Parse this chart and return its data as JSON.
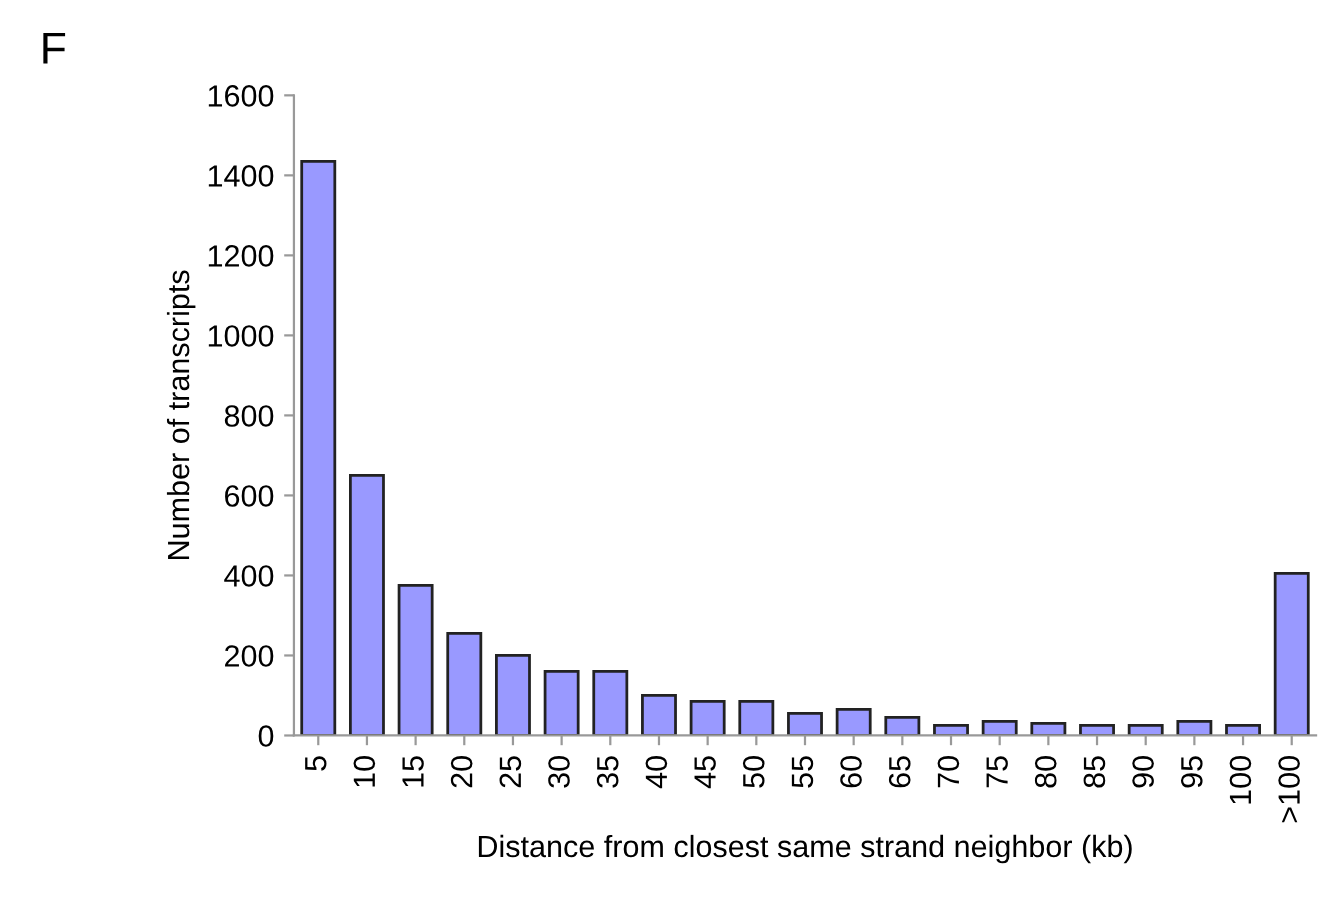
{
  "chart_data": {
    "type": "bar",
    "title": "F",
    "xlabel": "Distance from closest same strand neighbor (kb)",
    "ylabel": "Number of transcripts",
    "categories": [
      "5",
      "10",
      "15",
      "20",
      "25",
      "30",
      "35",
      "40",
      "45",
      "50",
      "55",
      "60",
      "65",
      "70",
      "75",
      "80",
      "85",
      "90",
      "95",
      "100",
      ">100"
    ],
    "values": [
      1435,
      650,
      375,
      255,
      200,
      160,
      160,
      100,
      85,
      85,
      55,
      65,
      45,
      25,
      35,
      30,
      25,
      25,
      35,
      25,
      405
    ],
    "color": "#9999ff",
    "ylim": [
      0,
      1600
    ],
    "yticks": [
      0,
      200,
      400,
      600,
      800,
      1000,
      1200,
      1400,
      1600
    ],
    "grid": false
  }
}
